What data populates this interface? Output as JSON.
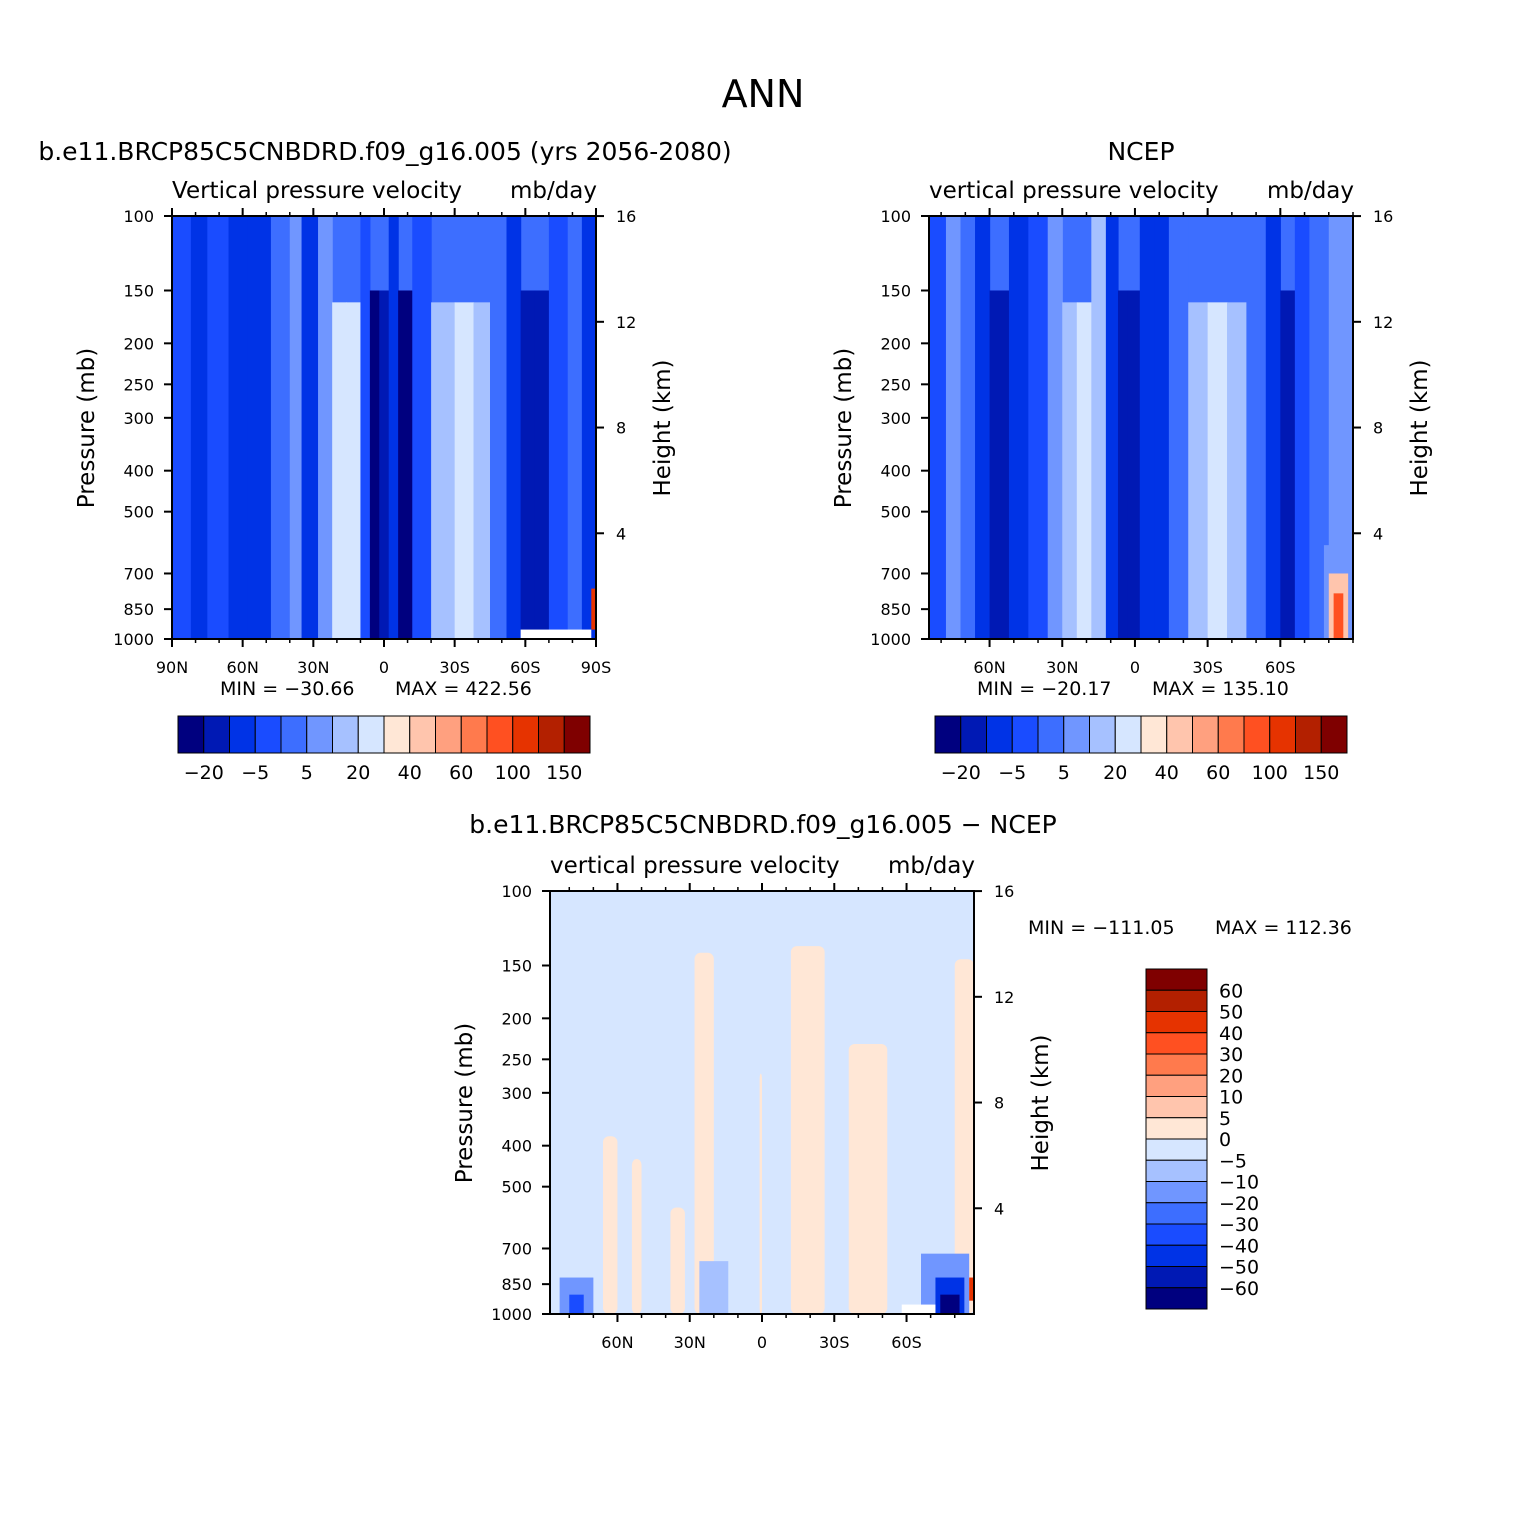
{
  "page": {
    "title": "ANN"
  },
  "colors": {
    "main_scale": [
      "#00007f",
      "#0019b4",
      "#0033e6",
      "#1a4cff",
      "#3d6eff",
      "#7096ff",
      "#a6c1ff",
      "#d6e6ff",
      "#ffe7d6",
      "#ffc5ad",
      "#ffa07f",
      "#ff7a4d",
      "#ff5021",
      "#e63300",
      "#b32000",
      "#7f0000"
    ],
    "diff_scale": [
      "#00007f",
      "#0019b4",
      "#0033e6",
      "#1a4cff",
      "#3d6eff",
      "#7096ff",
      "#a6c1ff",
      "#d6e6ff",
      "#ffe7d6",
      "#ffc5ad",
      "#ffa07f",
      "#ff7a4d",
      "#ff5021",
      "#e63300",
      "#b32000",
      "#7f0000"
    ],
    "missing": "#ffffff"
  },
  "chart_data": [
    {
      "type": "heatmap",
      "title": "b.e11.BRCP85C5CNBDRD.f09_g16.005 (yrs 2056-2080)",
      "subtitle_left": "Vertical pressure velocity",
      "subtitle_right": "mb/day",
      "ylabel": "Pressure (mb)",
      "ylabel_right": "Height (km)",
      "x_ticks": [
        "90N",
        "60N",
        "30N",
        "0",
        "30S",
        "60S",
        "90S"
      ],
      "x_tick_values": [
        90,
        60,
        30,
        0,
        -30,
        -60,
        -90
      ],
      "xlim": [
        90,
        -90
      ],
      "y_ticks": [
        "100",
        "150",
        "200",
        "250",
        "300",
        "400",
        "500",
        "700",
        "850",
        "1000"
      ],
      "y_tick_values": [
        100,
        150,
        200,
        250,
        300,
        400,
        500,
        700,
        850,
        1000
      ],
      "ylim": [
        1000,
        100
      ],
      "yscale": "log",
      "height_ticks": [
        "16",
        "12",
        "8",
        "4"
      ],
      "height_tick_values": [
        16,
        12,
        8,
        4
      ],
      "min_label": "MIN = −30.66",
      "max_label": "MAX = 422.56",
      "min": -30.66,
      "max": 422.56,
      "colorbar_labels": [
        "−20",
        "−5",
        "5",
        "20",
        "40",
        "60",
        "100",
        "150"
      ],
      "colorbar_orientation": "horizontal",
      "bands": [
        {
          "lat": 90,
          "v": -5
        },
        {
          "lat": 82,
          "v": -8
        },
        {
          "lat": 75,
          "v": -2
        },
        {
          "lat": 66,
          "v": -6
        },
        {
          "lat": 58,
          "v": -7
        },
        {
          "lat": 48,
          "v": 4
        },
        {
          "lat": 40,
          "v": 6
        },
        {
          "lat": 35,
          "v": -6
        },
        {
          "lat": 28,
          "v": 8
        },
        {
          "lat": 22,
          "v": 22
        },
        {
          "lat": 16,
          "v": 20
        },
        {
          "lat": 10,
          "v": -2
        },
        {
          "lat": 6,
          "v": -24
        },
        {
          "lat": 2,
          "v": -15
        },
        {
          "lat": -2,
          "v": -6
        },
        {
          "lat": -6,
          "v": -22
        },
        {
          "lat": -12,
          "v": -3
        },
        {
          "lat": -20,
          "v": 12
        },
        {
          "lat": -30,
          "v": 22
        },
        {
          "lat": -38,
          "v": 18
        },
        {
          "lat": -45,
          "v": 4
        },
        {
          "lat": -52,
          "v": -6
        },
        {
          "lat": -58,
          "v": -18
        },
        {
          "lat": -64,
          "v": -14
        },
        {
          "lat": -70,
          "v": -3
        },
        {
          "lat": -78,
          "v": 2
        },
        {
          "lat": -84,
          "v": -8
        },
        {
          "lat": -90,
          "v": -5
        }
      ]
    },
    {
      "type": "heatmap",
      "title": "NCEP",
      "subtitle_left": "vertical pressure velocity",
      "subtitle_right": "mb/day",
      "ylabel": "Pressure (mb)",
      "ylabel_right": "Height (km)",
      "x_ticks": [
        "60N",
        "30N",
        "0",
        "30S",
        "60S"
      ],
      "x_tick_values": [
        60,
        30,
        0,
        -30,
        -60
      ],
      "xlim": [
        85,
        -90
      ],
      "y_ticks": [
        "100",
        "150",
        "200",
        "250",
        "300",
        "400",
        "500",
        "700",
        "850",
        "1000"
      ],
      "y_tick_values": [
        100,
        150,
        200,
        250,
        300,
        400,
        500,
        700,
        850,
        1000
      ],
      "ylim": [
        1000,
        100
      ],
      "yscale": "log",
      "height_ticks": [
        "16",
        "12",
        "8",
        "4"
      ],
      "height_tick_values": [
        16,
        12,
        8,
        4
      ],
      "min_label": "MIN = −20.17",
      "max_label": "MAX = 135.10",
      "min": -20.17,
      "max": 135.1,
      "colorbar_labels": [
        "−20",
        "−5",
        "5",
        "20",
        "40",
        "60",
        "100",
        "150"
      ],
      "colorbar_orientation": "horizontal",
      "bands": [
        {
          "lat": 85,
          "v": -3
        },
        {
          "lat": 78,
          "v": 8
        },
        {
          "lat": 72,
          "v": 2
        },
        {
          "lat": 66,
          "v": -8
        },
        {
          "lat": 60,
          "v": -15
        },
        {
          "lat": 52,
          "v": -6
        },
        {
          "lat": 44,
          "v": -1
        },
        {
          "lat": 36,
          "v": 6
        },
        {
          "lat": 30,
          "v": 14
        },
        {
          "lat": 24,
          "v": 24
        },
        {
          "lat": 18,
          "v": 10
        },
        {
          "lat": 12,
          "v": -6
        },
        {
          "lat": 7,
          "v": -18
        },
        {
          "lat": 3,
          "v": -14
        },
        {
          "lat": -2,
          "v": -10
        },
        {
          "lat": -8,
          "v": -6
        },
        {
          "lat": -14,
          "v": 4
        },
        {
          "lat": -22,
          "v": 14
        },
        {
          "lat": -30,
          "v": 24
        },
        {
          "lat": -38,
          "v": 12
        },
        {
          "lat": -46,
          "v": 2
        },
        {
          "lat": -54,
          "v": -8
        },
        {
          "lat": -60,
          "v": -14
        },
        {
          "lat": -66,
          "v": -4
        },
        {
          "lat": -72,
          "v": 3
        },
        {
          "lat": -80,
          "v": 6
        },
        {
          "lat": -90,
          "v": -2
        }
      ]
    },
    {
      "type": "heatmap",
      "title": "b.e11.BRCP85C5CNBDRD.f09_g16.005 − NCEP",
      "subtitle_left": "vertical pressure velocity",
      "subtitle_right": "mb/day",
      "ylabel": "Pressure (mb)",
      "ylabel_right": "Height (km)",
      "x_ticks": [
        "60N",
        "30N",
        "0",
        "30S",
        "60S"
      ],
      "x_tick_values": [
        60,
        30,
        0,
        -30,
        -60
      ],
      "xlim": [
        88,
        -88
      ],
      "y_ticks": [
        "100",
        "150",
        "200",
        "250",
        "300",
        "400",
        "500",
        "700",
        "850",
        "1000"
      ],
      "y_tick_values": [
        100,
        150,
        200,
        250,
        300,
        400,
        500,
        700,
        850,
        1000
      ],
      "ylim": [
        1000,
        100
      ],
      "yscale": "log",
      "height_ticks": [
        "16",
        "12",
        "8",
        "4"
      ],
      "height_tick_values": [
        16,
        12,
        8,
        4
      ],
      "min_label": "MIN = −111.05",
      "max_label": "MAX = 112.36",
      "min": -111.05,
      "max": 112.36,
      "colorbar_labels": [
        "60",
        "50",
        "40",
        "30",
        "20",
        "10",
        "5",
        "0",
        "−5",
        "−10",
        "−20",
        "−30",
        "−40",
        "−50",
        "−60"
      ],
      "colorbar_orientation": "vertical",
      "positive_regions": [
        {
          "lat_from": 28,
          "lat_to": 20,
          "p_top": 140
        },
        {
          "lat_from": -12,
          "lat_to": -26,
          "p_top": 135
        },
        {
          "lat_from": -36,
          "lat_to": -52,
          "p_top": 230
        },
        {
          "lat_from": -80,
          "lat_to": -88,
          "p_top": 145
        },
        {
          "lat_from": 66,
          "lat_to": 60,
          "p_top": 380
        },
        {
          "lat_from": 54,
          "lat_to": 50,
          "p_top": 430
        },
        {
          "lat_from": 38,
          "lat_to": 32,
          "p_top": 560
        },
        {
          "lat_from": 1,
          "lat_to": 0,
          "p_top": 270
        }
      ]
    }
  ]
}
